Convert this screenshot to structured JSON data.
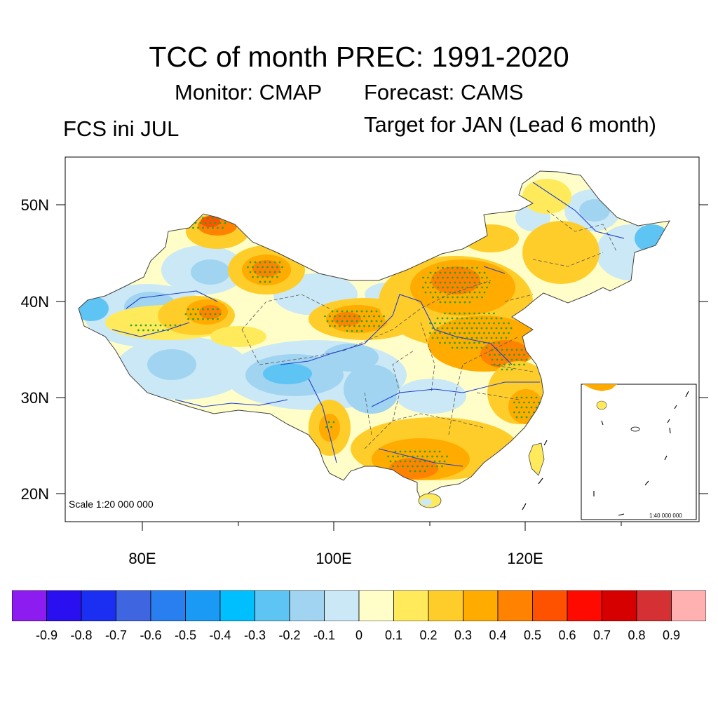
{
  "title": "TCC of month PREC: 1991-2020",
  "subtitle": {
    "monitor": "Monitor: CMAP",
    "forecast": "Forecast: CAMS",
    "init": "FCS ini JUL",
    "target": "Target for JAN (Lead 6 month)"
  },
  "axes": {
    "y_labels": [
      "50N",
      "40N",
      "30N",
      "20N"
    ],
    "y_values": [
      50,
      40,
      30,
      20
    ],
    "x_labels": [
      "80E",
      "100E",
      "120E"
    ],
    "x_values": [
      80,
      100,
      120
    ],
    "lon_range": [
      72,
      138
    ],
    "lat_range": [
      17,
      55
    ]
  },
  "scale": {
    "main": "Scale 1:20 000 000",
    "inset": "1:40 000 000"
  },
  "colorbar": {
    "labels": [
      "-0.9",
      "-0.8",
      "-0.7",
      "-0.6",
      "-0.5",
      "-0.4",
      "-0.3",
      "-0.2",
      "-0.1",
      "0",
      "0.1",
      "0.2",
      "0.3",
      "0.4",
      "0.5",
      "0.6",
      "0.7",
      "0.8",
      "0.9"
    ],
    "colors": [
      "#8c1cef",
      "#2a10f0",
      "#1b2ff2",
      "#3f66e0",
      "#2a7ff0",
      "#1a9af5",
      "#00bfff",
      "#5ec4f4",
      "#a0d4f0",
      "#cbe8f6",
      "#fffec8",
      "#ffea5c",
      "#ffcd2a",
      "#ffab00",
      "#ff8200",
      "#ff5200",
      "#ff0a00",
      "#d70000",
      "#d53033",
      "#ffb0b0"
    ]
  },
  "palette": {
    "dots": "#22aa22",
    "rivers": "#1f3fcf",
    "border": "#404040",
    "frame": "#000000"
  }
}
